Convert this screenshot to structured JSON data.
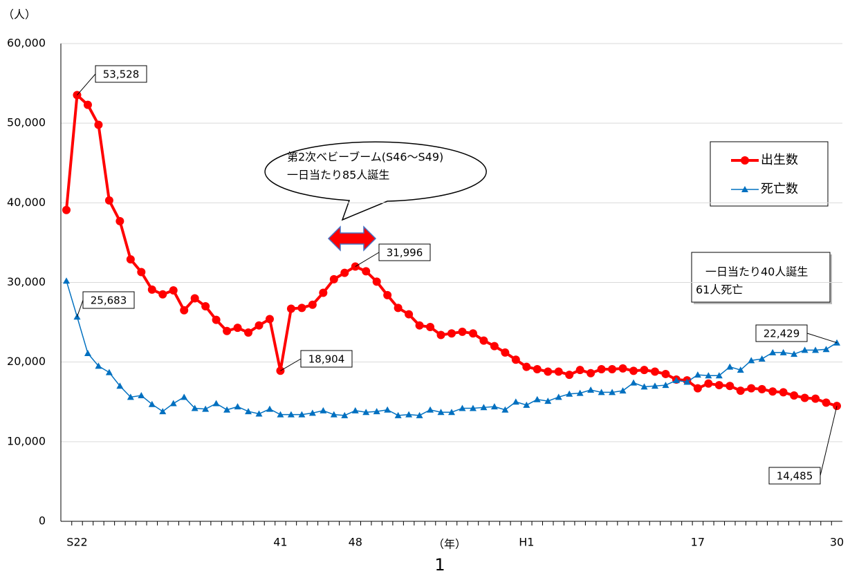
{
  "chart_data": {
    "type": "line",
    "y_unit_label": "（人）",
    "x_label": "（年）",
    "page_number": "1",
    "categories": [
      null,
      "S22",
      null,
      null,
      null,
      null,
      null,
      null,
      null,
      null,
      null,
      null,
      null,
      null,
      null,
      null,
      null,
      null,
      null,
      null,
      "41",
      null,
      null,
      null,
      null,
      null,
      null,
      "48",
      null,
      null,
      null,
      null,
      null,
      null,
      null,
      null,
      null,
      null,
      null,
      null,
      null,
      null,
      null,
      "H1",
      null,
      null,
      null,
      null,
      null,
      null,
      null,
      null,
      null,
      null,
      null,
      null,
      null,
      null,
      null,
      "17",
      null,
      null,
      null,
      null,
      null,
      null,
      null,
      null,
      null,
      null,
      null,
      null,
      "30"
    ],
    "series": [
      {
        "name": "出生数",
        "color": "#ff0000",
        "marker": "circle",
        "values": [
          39100,
          53528,
          52300,
          49800,
          40300,
          37700,
          32900,
          31300,
          29100,
          28500,
          29000,
          26500,
          28000,
          27000,
          25300,
          23900,
          24300,
          23700,
          24600,
          25400,
          18904,
          26700,
          26800,
          27200,
          28700,
          30400,
          31200,
          31996,
          31400,
          30100,
          28400,
          26800,
          26000,
          24600,
          24400,
          23400,
          23600,
          23800,
          23600,
          22700,
          22000,
          21200,
          20300,
          19400,
          19100,
          18800,
          18800,
          18400,
          19000,
          18600,
          19100,
          19100,
          19200,
          18900,
          19000,
          18800,
          18500,
          17800,
          17700,
          16700,
          17300,
          17100,
          17000,
          16400,
          16700,
          16600,
          16300,
          16200,
          15800,
          15500,
          15400,
          14900,
          14485
        ],
        "value_labels": [
          null,
          "53,528",
          null,
          null,
          null,
          null,
          null,
          null,
          null,
          null,
          null,
          null,
          null,
          null,
          null,
          null,
          null,
          null,
          null,
          null,
          "18,904",
          null,
          null,
          null,
          null,
          null,
          null,
          "31,996",
          null,
          null,
          null,
          null,
          null,
          null,
          null,
          null,
          null,
          null,
          null,
          null,
          null,
          null,
          null,
          null,
          null,
          null,
          null,
          null,
          null,
          null,
          null,
          null,
          null,
          null,
          null,
          null,
          null,
          null,
          null,
          null,
          null,
          null,
          null,
          null,
          null,
          null,
          null,
          null,
          null,
          null,
          null,
          null,
          "14,485"
        ]
      },
      {
        "name": "死亡数",
        "color": "#0070c0",
        "marker": "triangle",
        "values": [
          30200,
          25683,
          21100,
          19500,
          18700,
          17000,
          15600,
          15800,
          14700,
          13800,
          14800,
          15600,
          14200,
          14100,
          14800,
          14000,
          14400,
          13800,
          13500,
          14100,
          13400,
          13400,
          13400,
          13600,
          13900,
          13400,
          13300,
          13900,
          13700,
          13800,
          14000,
          13300,
          13400,
          13300,
          14000,
          13700,
          13700,
          14200,
          14200,
          14300,
          14400,
          14000,
          15000,
          14600,
          15300,
          15100,
          15600,
          16000,
          16100,
          16500,
          16200,
          16200,
          16400,
          17400,
          16900,
          17000,
          17100,
          17700,
          17500,
          18400,
          18300,
          18300,
          19400,
          19000,
          20200,
          20400,
          21200,
          21200,
          21000,
          21500,
          21500,
          21600,
          22429
        ],
        "value_labels": [
          null,
          "25,683",
          null,
          null,
          null,
          null,
          null,
          null,
          null,
          null,
          null,
          null,
          null,
          null,
          null,
          null,
          null,
          null,
          null,
          null,
          null,
          null,
          null,
          null,
          null,
          null,
          null,
          null,
          null,
          null,
          null,
          null,
          null,
          null,
          null,
          null,
          null,
          null,
          null,
          null,
          null,
          null,
          null,
          null,
          null,
          null,
          null,
          null,
          null,
          null,
          null,
          null,
          null,
          null,
          null,
          null,
          null,
          null,
          null,
          null,
          null,
          null,
          null,
          null,
          null,
          null,
          null,
          null,
          null,
          null,
          null,
          null,
          "22,429"
        ]
      }
    ],
    "ylim": [
      0,
      60000
    ],
    "yticks": [
      0,
      {
        "value": 10000,
        "label": "10,000"
      },
      {
        "value": 20000,
        "label": "20,000"
      },
      {
        "value": 30000,
        "label": "30,000"
      },
      {
        "value": 40000,
        "label": "40,000"
      },
      {
        "value": 50000,
        "label": "50,000"
      },
      {
        "value": 60000,
        "label": "60,000"
      }
    ],
    "grid": true,
    "annotations": [
      {
        "lines": [
          "第2次ベビーブーム(S46～S49)",
          "一日当たり85人誕生"
        ]
      },
      {
        "lines": [
          "一日当たり40人誕生",
          "61人死亡"
        ]
      }
    ]
  }
}
